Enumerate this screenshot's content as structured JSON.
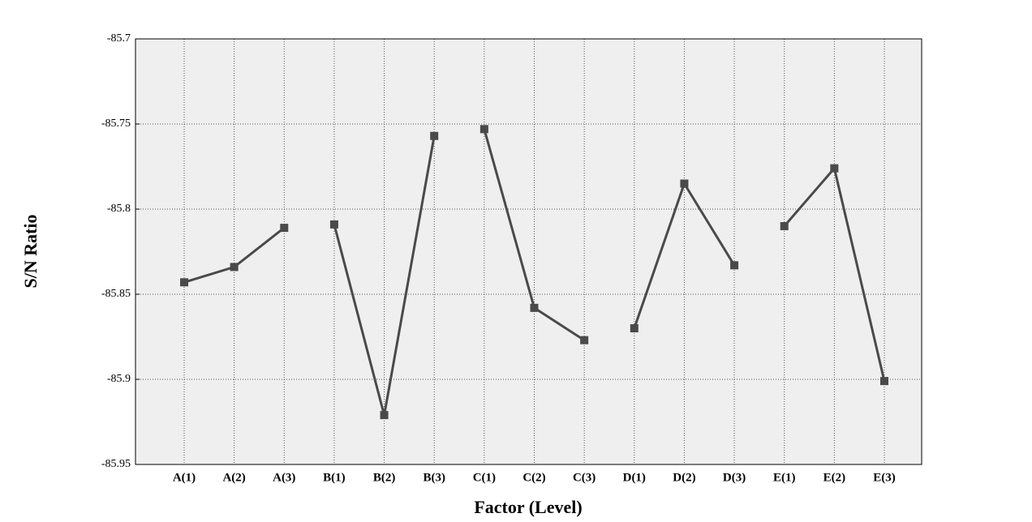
{
  "chart_data": {
    "type": "line",
    "xlabel": "Factor (Level)",
    "ylabel": "S/N Ratio",
    "categories": [
      "A(1)",
      "A(2)",
      "A(3)",
      "B(1)",
      "B(2)",
      "B(3)",
      "C(1)",
      "C(2)",
      "C(3)",
      "D(1)",
      "D(2)",
      "D(3)",
      "E(1)",
      "E(2)",
      "E(3)"
    ],
    "series": [
      {
        "color": "#4a4a4a",
        "values": [
          -85.843,
          -85.834,
          -85.811,
          null,
          null,
          null,
          null,
          null,
          null,
          null,
          null,
          null,
          null,
          null,
          null
        ]
      },
      {
        "color": "#4a4a4a",
        "values": [
          null,
          null,
          null,
          -85.809,
          -85.921,
          -85.757,
          null,
          null,
          null,
          null,
          null,
          null,
          null,
          null,
          null
        ]
      },
      {
        "color": "#4a4a4a",
        "values": [
          null,
          null,
          null,
          null,
          null,
          null,
          -85.753,
          -85.858,
          -85.877,
          null,
          null,
          null,
          null,
          null,
          null
        ]
      },
      {
        "color": "#4a4a4a",
        "values": [
          null,
          null,
          null,
          null,
          null,
          null,
          null,
          null,
          null,
          -85.87,
          -85.785,
          -85.833,
          null,
          null,
          null
        ]
      },
      {
        "color": "#4a4a4a",
        "values": [
          null,
          null,
          null,
          null,
          null,
          null,
          null,
          null,
          null,
          null,
          null,
          null,
          -85.81,
          -85.776,
          -85.901
        ]
      }
    ],
    "ylim": [
      -85.95,
      -85.7
    ],
    "yticks": [
      -85.95,
      -85.9,
      -85.85,
      -85.8,
      -85.75,
      -85.7
    ],
    "grid": true
  }
}
